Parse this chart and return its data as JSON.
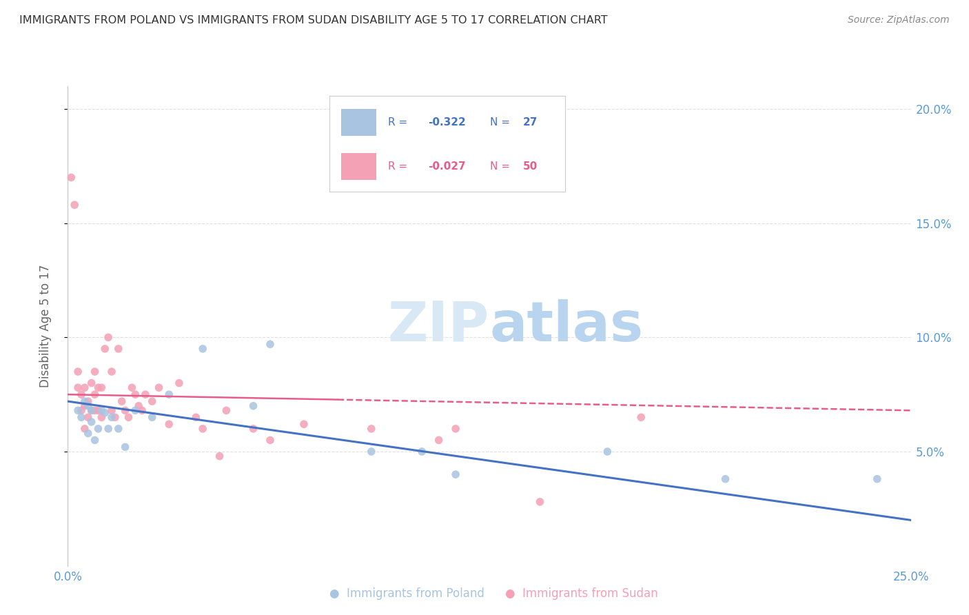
{
  "title": "IMMIGRANTS FROM POLAND VS IMMIGRANTS FROM SUDAN DISABILITY AGE 5 TO 17 CORRELATION CHART",
  "source": "Source: ZipAtlas.com",
  "ylabel": "Disability Age 5 to 17",
  "xlim": [
    0.0,
    0.25
  ],
  "ylim": [
    0.0,
    0.21
  ],
  "poland_color": "#a8c4e0",
  "sudan_color": "#f4a0b5",
  "poland_R": -0.322,
  "poland_N": 27,
  "sudan_R": -0.027,
  "sudan_N": 50,
  "background_color": "#ffffff",
  "grid_color": "#e0e0e0",
  "poland_line_color": "#4472c4",
  "sudan_line_color": "#e85c8a",
  "title_color": "#333333",
  "axis_color": "#5b9bd5",
  "marker_size": 70,
  "poland_scatter_x": [
    0.003,
    0.004,
    0.005,
    0.006,
    0.006,
    0.007,
    0.007,
    0.008,
    0.009,
    0.01,
    0.011,
    0.012,
    0.013,
    0.015,
    0.017,
    0.02,
    0.025,
    0.03,
    0.04,
    0.055,
    0.06,
    0.09,
    0.105,
    0.115,
    0.16,
    0.195,
    0.24
  ],
  "poland_scatter_y": [
    0.068,
    0.065,
    0.072,
    0.058,
    0.07,
    0.063,
    0.068,
    0.055,
    0.06,
    0.068,
    0.067,
    0.06,
    0.065,
    0.06,
    0.052,
    0.068,
    0.065,
    0.075,
    0.095,
    0.07,
    0.097,
    0.05,
    0.05,
    0.04,
    0.05,
    0.038,
    0.038
  ],
  "sudan_scatter_x": [
    0.001,
    0.002,
    0.003,
    0.003,
    0.004,
    0.004,
    0.005,
    0.005,
    0.005,
    0.006,
    0.006,
    0.007,
    0.007,
    0.008,
    0.008,
    0.008,
    0.009,
    0.009,
    0.01,
    0.01,
    0.011,
    0.012,
    0.013,
    0.013,
    0.014,
    0.015,
    0.016,
    0.017,
    0.018,
    0.019,
    0.02,
    0.021,
    0.022,
    0.023,
    0.025,
    0.027,
    0.03,
    0.033,
    0.038,
    0.04,
    0.045,
    0.047,
    0.055,
    0.06,
    0.07,
    0.09,
    0.11,
    0.115,
    0.14,
    0.17
  ],
  "sudan_scatter_y": [
    0.17,
    0.158,
    0.078,
    0.085,
    0.068,
    0.075,
    0.06,
    0.07,
    0.078,
    0.065,
    0.072,
    0.068,
    0.08,
    0.068,
    0.075,
    0.085,
    0.068,
    0.078,
    0.065,
    0.078,
    0.095,
    0.1,
    0.068,
    0.085,
    0.065,
    0.095,
    0.072,
    0.068,
    0.065,
    0.078,
    0.075,
    0.07,
    0.068,
    0.075,
    0.072,
    0.078,
    0.062,
    0.08,
    0.065,
    0.06,
    0.048,
    0.068,
    0.06,
    0.055,
    0.062,
    0.06,
    0.055,
    0.06,
    0.028,
    0.065
  ],
  "watermark_zip": "ZIP",
  "watermark_atlas": "atlas",
  "bottom_legend_poland": "Immigrants from Poland",
  "bottom_legend_sudan": "Immigrants from Sudan"
}
